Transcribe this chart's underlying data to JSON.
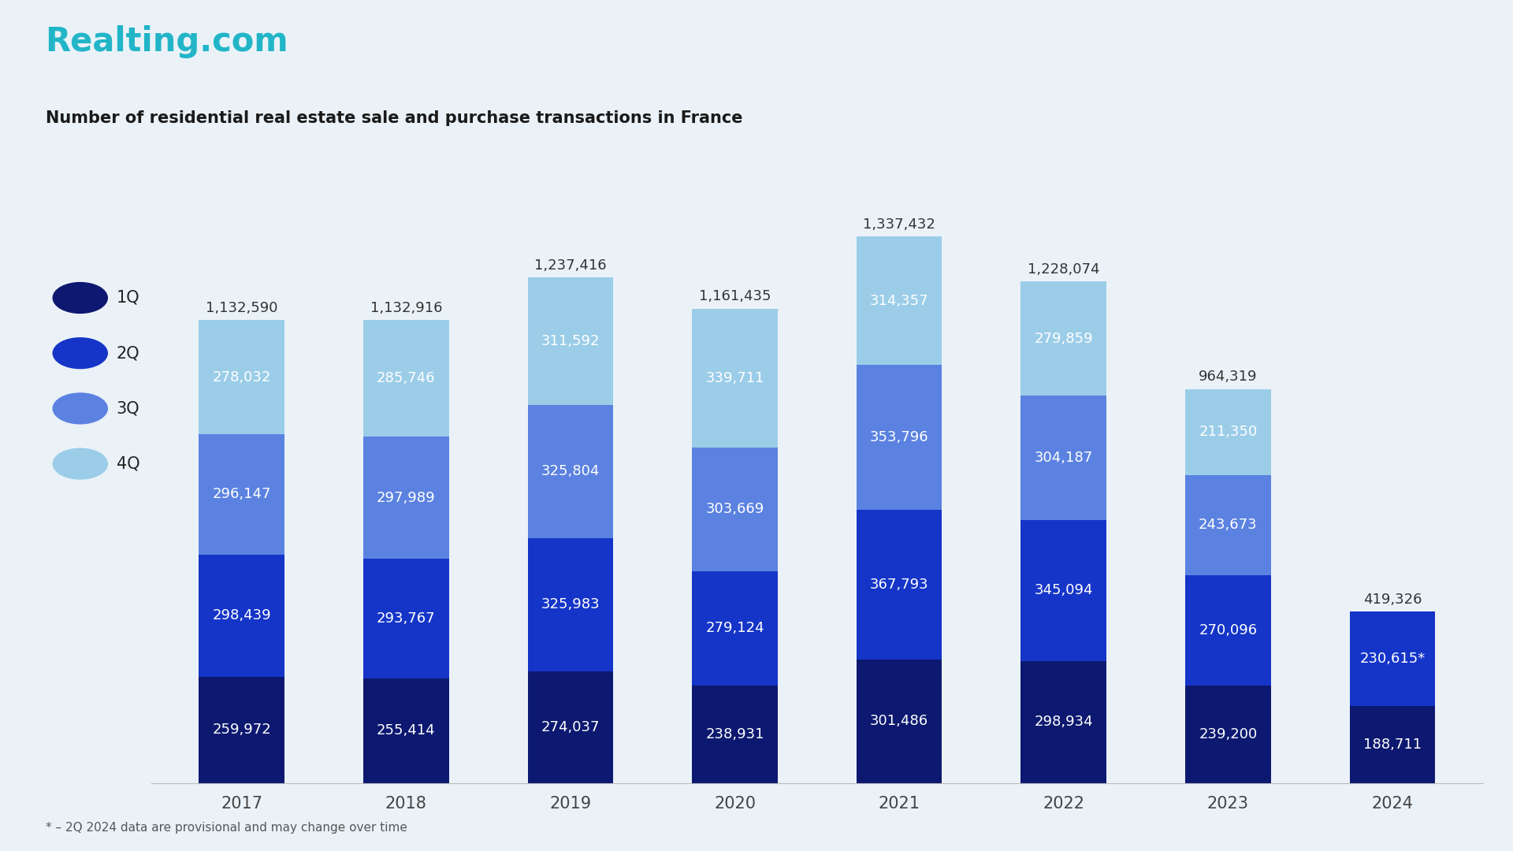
{
  "title": "Number of residential real estate sale and purchase transactions in France",
  "logo_text": "Realting.com",
  "logo_color": "#22b5c8",
  "background_color": "#eaf2f8",
  "years": [
    "2017",
    "2018",
    "2019",
    "2020",
    "2021",
    "2022",
    "2023",
    "2024"
  ],
  "quarters": [
    "1Q",
    "2Q",
    "3Q",
    "4Q"
  ],
  "colors": {
    "1Q": "#0d1970",
    "2Q": "#1535c8",
    "3Q": "#5b82e0",
    "4Q": "#9bcde8"
  },
  "data": {
    "1Q": [
      259972,
      255414,
      274037,
      238931,
      301486,
      298934,
      239200,
      188711
    ],
    "2Q": [
      298439,
      293767,
      325983,
      279124,
      367793,
      345094,
      270096,
      230615
    ],
    "3Q": [
      296147,
      297989,
      325804,
      303669,
      353796,
      304187,
      243673,
      0
    ],
    "4Q": [
      278032,
      285746,
      311592,
      339711,
      314357,
      279859,
      211350,
      0
    ]
  },
  "totals": [
    1132590,
    1132916,
    1237416,
    1161435,
    1337432,
    1228074,
    964319,
    419326
  ],
  "footnote": "* – 2Q 2024 data are provisional and may change over time",
  "special_label": "230,615*",
  "label_fontsize": 13,
  "total_fontsize": 13,
  "year_fontsize": 15,
  "title_fontsize": 15,
  "logo_fontsize": 30,
  "legend_fontsize": 15,
  "bar_width": 0.52,
  "ylim_max": 1500000
}
